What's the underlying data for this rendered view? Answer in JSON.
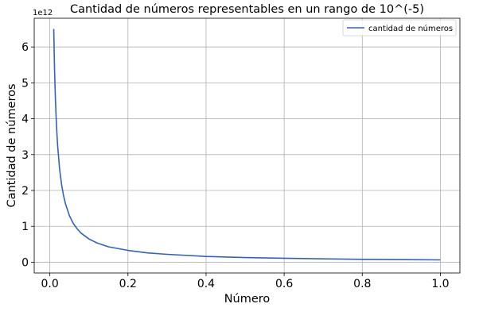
{
  "chart_data": {
    "type": "line",
    "title": "Cantidad de números representables en un rango de 10^(-5)",
    "xlabel": "Número",
    "ylabel": "Cantidad de números",
    "y_offset_label": "1e12",
    "xlim": [
      -0.04,
      1.05
    ],
    "ylim": [
      -0.3,
      6.8
    ],
    "x_ticks": [
      0.0,
      0.2,
      0.4,
      0.6,
      0.8,
      1.0
    ],
    "x_tick_labels": [
      "0.0",
      "0.2",
      "0.4",
      "0.6",
      "0.8",
      "1.0"
    ],
    "y_ticks": [
      0,
      1,
      2,
      3,
      4,
      5,
      6
    ],
    "y_tick_labels": [
      "0",
      "1",
      "2",
      "3",
      "4",
      "5",
      "6"
    ],
    "grid": true,
    "legend_position": "top-right",
    "series": [
      {
        "name": "cantidad de números",
        "color": "#2e63c0",
        "x": [
          0.01,
          0.012,
          0.014,
          0.016,
          0.018,
          0.02,
          0.025,
          0.03,
          0.035,
          0.04,
          0.05,
          0.06,
          0.07,
          0.08,
          0.1,
          0.12,
          0.15,
          0.2,
          0.25,
          0.3,
          0.4,
          0.5,
          0.6,
          0.7,
          0.8,
          0.9,
          1.0
        ],
        "y": [
          6.5,
          5.4,
          4.65,
          4.07,
          3.61,
          3.25,
          2.6,
          2.17,
          1.86,
          1.63,
          1.3,
          1.08,
          0.93,
          0.81,
          0.65,
          0.54,
          0.43,
          0.33,
          0.26,
          0.22,
          0.16,
          0.13,
          0.11,
          0.093,
          0.081,
          0.072,
          0.065
        ]
      }
    ]
  }
}
